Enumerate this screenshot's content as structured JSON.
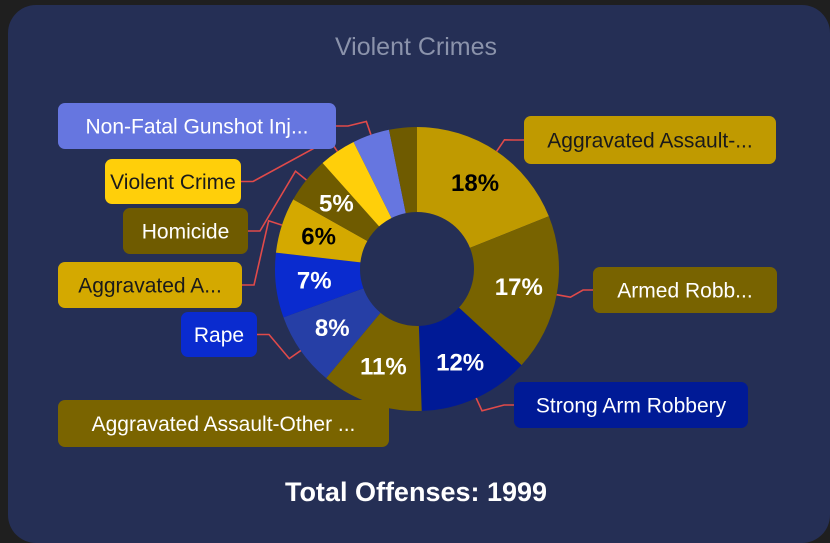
{
  "title": "Violent Crimes",
  "total_label": "Total Offenses: 1999",
  "chart_data": {
    "type": "pie",
    "style": "donut",
    "title": "Violent Crimes",
    "slices": [
      {
        "label": "Aggravated Assault-...",
        "value": 18,
        "percent_label": "18%",
        "color": "#c09a00",
        "text_color": "#000000",
        "callout_text": "#1a1a1a"
      },
      {
        "label": "Armed Robb...",
        "value": 17,
        "percent_label": "17%",
        "color": "#786300",
        "text_color": "#ffffff",
        "callout_text": "#ffffff"
      },
      {
        "label": "Strong Arm Robbery",
        "value": 12,
        "percent_label": "12%",
        "color": "#001a96",
        "text_color": "#ffffff",
        "callout_text": "#ffffff"
      },
      {
        "label": "Aggravated Assault-Other ...",
        "value": 11,
        "percent_label": "11%",
        "color": "#7a6400",
        "text_color": "#ffffff",
        "callout_text": "#ffffff"
      },
      {
        "label": "Rape",
        "value": 8,
        "percent_label": "8%",
        "color": "#263fa6",
        "text_color": "#ffffff",
        "callout_text": "#ffffff",
        "callout_fill": "#0a2bcf"
      },
      {
        "label": "",
        "value": 7,
        "percent_label": "7%",
        "color": "#0a2bcf",
        "text_color": "#ffffff"
      },
      {
        "label": "Aggravated A...",
        "value": 6,
        "percent_label": "6%",
        "color": "#d4a900",
        "text_color": "#000000",
        "callout_text": "#1a1a1a"
      },
      {
        "label": "Homicide",
        "value": 5,
        "percent_label": "5%",
        "color": "#6f5b00",
        "text_color": "#ffffff",
        "callout_text": "#ffffff"
      },
      {
        "label": "Violent Crime",
        "value": 4,
        "percent_label": "",
        "color": "#ffcf0a",
        "text_color": "#000000",
        "callout_text": "#1a1a1a"
      },
      {
        "label": "Non-Fatal Gunshot Inj...",
        "value": 4,
        "percent_label": "",
        "color": "#6676e0",
        "text_color": "#ffffff",
        "callout_text": "#ffffff"
      },
      {
        "label": "",
        "value": 3,
        "percent_label": "",
        "color": "#6f5b00",
        "text_color": "#ffffff"
      }
    ],
    "legend": "none",
    "leader_color": "#e04a4a"
  }
}
